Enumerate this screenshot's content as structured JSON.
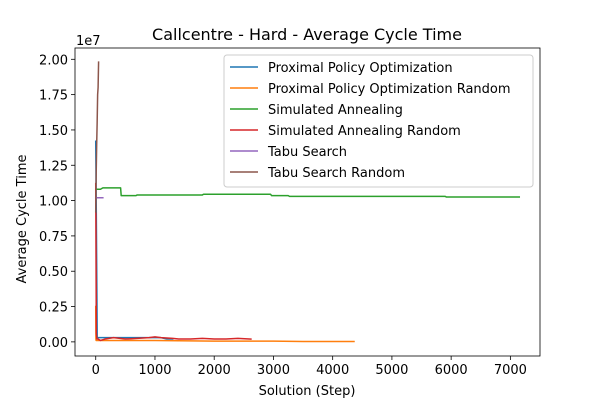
{
  "chart_data": {
    "type": "line",
    "title": "Callcentre - Hard - Average Cycle Time",
    "xlabel": "Solution (Step)",
    "ylabel": "Average Cycle Time",
    "y_offset_label": "1e7",
    "xlim": [
      -350,
      7500
    ],
    "ylim": [
      -0.1,
      2.08
    ],
    "xticks": [
      0,
      1000,
      2000,
      3000,
      4000,
      5000,
      6000,
      7000
    ],
    "xtick_labels": [
      "0",
      "1000",
      "2000",
      "3000",
      "4000",
      "5000",
      "6000",
      "7000"
    ],
    "yticks": [
      0.0,
      0.25,
      0.5,
      0.75,
      1.0,
      1.25,
      1.5,
      1.75,
      2.0
    ],
    "ytick_labels": [
      "0.00",
      "0.25",
      "0.50",
      "0.75",
      "1.00",
      "1.25",
      "1.50",
      "1.75",
      "2.00"
    ],
    "grid": false,
    "legend_position": "top-right",
    "series": [
      {
        "name": "Proximal Policy Optimization",
        "color": "#1f77b4",
        "x": [
          0,
          5,
          10,
          25,
          40,
          80,
          150,
          300,
          600,
          900,
          1100,
          1200,
          1300
        ],
        "y": [
          1.42,
          1.15,
          0.9,
          0.03,
          0.03,
          0.03,
          0.03,
          0.03,
          0.03,
          0.03,
          0.03,
          0.02,
          0.02
        ]
      },
      {
        "name": "Proximal Policy Optimization Random",
        "color": "#ff7f0e",
        "x": [
          0,
          3,
          6,
          15,
          30,
          100,
          500,
          1000,
          2000,
          3000,
          3500,
          4000,
          4360
        ],
        "y": [
          0.25,
          0.02,
          0.01,
          0.01,
          0.01,
          0.01,
          0.01,
          0.01,
          0.005,
          0.005,
          0.003,
          0.003,
          0.003
        ]
      },
      {
        "name": "Simulated Annealing",
        "color": "#2ca02c",
        "x": [
          0,
          80,
          120,
          420,
          430,
          680,
          700,
          1800,
          1820,
          2950,
          2970,
          3250,
          3270,
          5900,
          5920,
          7150
        ],
        "y": [
          1.08,
          1.08,
          1.09,
          1.09,
          1.035,
          1.035,
          1.04,
          1.04,
          1.045,
          1.045,
          1.035,
          1.035,
          1.03,
          1.03,
          1.025,
          1.025
        ]
      },
      {
        "name": "Simulated Annealing Random",
        "color": "#d62728",
        "x": [
          0,
          5,
          10,
          20,
          40,
          80,
          160,
          300,
          500,
          700,
          900,
          1000,
          1100,
          1300,
          1400,
          1600,
          1800,
          2000,
          2200,
          2400,
          2620
        ],
        "y": [
          1.12,
          0.6,
          0.06,
          0.02,
          0.02,
          0.01,
          0.02,
          0.03,
          0.02,
          0.025,
          0.03,
          0.035,
          0.03,
          0.025,
          0.02,
          0.02,
          0.025,
          0.02,
          0.02,
          0.025,
          0.02
        ]
      },
      {
        "name": "Tabu Search",
        "color": "#9467bd",
        "x": [
          0,
          60,
          120
        ],
        "y": [
          1.02,
          1.02,
          1.02
        ]
      },
      {
        "name": "Tabu Search Random",
        "color": "#8c564b",
        "x": [
          0,
          8,
          16,
          24,
          32,
          40,
          48
        ],
        "y": [
          0.92,
          1.2,
          1.4,
          1.55,
          1.75,
          1.8,
          1.98
        ]
      }
    ]
  }
}
